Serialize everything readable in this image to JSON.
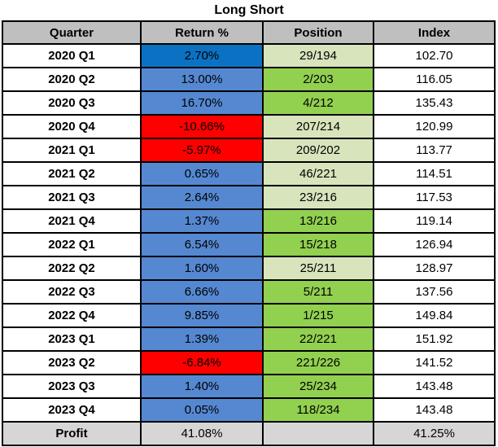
{
  "title": "Long Short",
  "colors": {
    "header_bg": "#BFBFBF",
    "profit_bg": "#D6D6D6",
    "border": "#000000",
    "return": {
      "dark_blue": "#0B72C3",
      "blue": "#5588D1",
      "red": "#FE0000"
    },
    "position": {
      "green": "#92D050",
      "pale_green": "#D8E4BC"
    }
  },
  "table": {
    "headers": [
      "Quarter",
      "Return %",
      "Position",
      "Index"
    ],
    "rows": [
      {
        "quarter": "2020 Q1",
        "return_pct": "2.70%",
        "return_color": "dark_blue",
        "position": "29/194",
        "position_color": "pale_green",
        "index": "102.70"
      },
      {
        "quarter": "2020 Q2",
        "return_pct": "13.00%",
        "return_color": "blue",
        "position": "2/203",
        "position_color": "green",
        "index": "116.05"
      },
      {
        "quarter": "2020 Q3",
        "return_pct": "16.70%",
        "return_color": "blue",
        "position": "4/212",
        "position_color": "green",
        "index": "135.43"
      },
      {
        "quarter": "2020 Q4",
        "return_pct": "-10.66%",
        "return_color": "red",
        "position": "207/214",
        "position_color": "pale_green",
        "index": "120.99"
      },
      {
        "quarter": "2021 Q1",
        "return_pct": "-5.97%",
        "return_color": "red",
        "position": "209/202",
        "position_color": "pale_green",
        "index": "113.77"
      },
      {
        "quarter": "2021 Q2",
        "return_pct": "0.65%",
        "return_color": "blue",
        "position": "46/221",
        "position_color": "pale_green",
        "index": "114.51"
      },
      {
        "quarter": "2021 Q3",
        "return_pct": "2.64%",
        "return_color": "blue",
        "position": "23/216",
        "position_color": "pale_green",
        "index": "117.53"
      },
      {
        "quarter": "2021 Q4",
        "return_pct": "1.37%",
        "return_color": "blue",
        "position": "13/216",
        "position_color": "green",
        "index": "119.14"
      },
      {
        "quarter": "2022 Q1",
        "return_pct": "6.54%",
        "return_color": "blue",
        "position": "15/218",
        "position_color": "green",
        "index": "126.94"
      },
      {
        "quarter": "2022 Q2",
        "return_pct": "1.60%",
        "return_color": "blue",
        "position": "25/211",
        "position_color": "pale_green",
        "index": "128.97"
      },
      {
        "quarter": "2022 Q3",
        "return_pct": "6.66%",
        "return_color": "blue",
        "position": "5/211",
        "position_color": "green",
        "index": "137.56"
      },
      {
        "quarter": "2022 Q4",
        "return_pct": "9.85%",
        "return_color": "blue",
        "position": "1/215",
        "position_color": "green",
        "index": "149.84"
      },
      {
        "quarter": "2023 Q1",
        "return_pct": "1.39%",
        "return_color": "blue",
        "position": "22/221",
        "position_color": "green",
        "index": "151.92"
      },
      {
        "quarter": "2023 Q2",
        "return_pct": "-6.84%",
        "return_color": "red",
        "position": "221/226",
        "position_color": "green",
        "index": "141.52"
      },
      {
        "quarter": "2023 Q3",
        "return_pct": "1.40%",
        "return_color": "blue",
        "position": "25/234",
        "position_color": "green",
        "index": "143.48"
      },
      {
        "quarter": "2023 Q4",
        "return_pct": "0.05%",
        "return_color": "blue",
        "position": "118/234",
        "position_color": "green",
        "index": "143.48"
      }
    ],
    "profit": {
      "label": "Profit",
      "return_pct": "41.08%",
      "position": "",
      "index_pct": "41.25%"
    }
  },
  "chart_data": {
    "type": "table",
    "title": "Long Short",
    "columns": [
      "Quarter",
      "Return %",
      "Position",
      "Index"
    ],
    "rows": [
      [
        "2020 Q1",
        2.7,
        "29/194",
        102.7
      ],
      [
        "2020 Q2",
        13.0,
        "2/203",
        116.05
      ],
      [
        "2020 Q3",
        16.7,
        "4/212",
        135.43
      ],
      [
        "2020 Q4",
        -10.66,
        "207/214",
        120.99
      ],
      [
        "2021 Q1",
        -5.97,
        "209/202",
        113.77
      ],
      [
        "2021 Q2",
        0.65,
        "46/221",
        114.51
      ],
      [
        "2021 Q3",
        2.64,
        "23/216",
        117.53
      ],
      [
        "2021 Q4",
        1.37,
        "13/216",
        119.14
      ],
      [
        "2022 Q1",
        6.54,
        "15/218",
        126.94
      ],
      [
        "2022 Q2",
        1.6,
        "25/211",
        128.97
      ],
      [
        "2022 Q3",
        6.66,
        "5/211",
        137.56
      ],
      [
        "2022 Q4",
        9.85,
        "1/215",
        149.84
      ],
      [
        "2023 Q1",
        1.39,
        "22/221",
        151.92
      ],
      [
        "2023 Q2",
        -6.84,
        "221/226",
        141.52
      ],
      [
        "2023 Q3",
        1.4,
        "25/234",
        143.48
      ],
      [
        "2023 Q4",
        0.05,
        "118/234",
        143.48
      ]
    ],
    "summary": {
      "profit_return_pct": 41.08,
      "profit_index_pct": 41.25
    },
    "cell_color_legend": {
      "return_first_row": "dark blue #0B72C3",
      "return_positive": "blue #5588D1",
      "return_negative": "red #FE0000",
      "position_highlight": "green #92D050",
      "position_muted": "pale green #D8E4BC"
    }
  }
}
